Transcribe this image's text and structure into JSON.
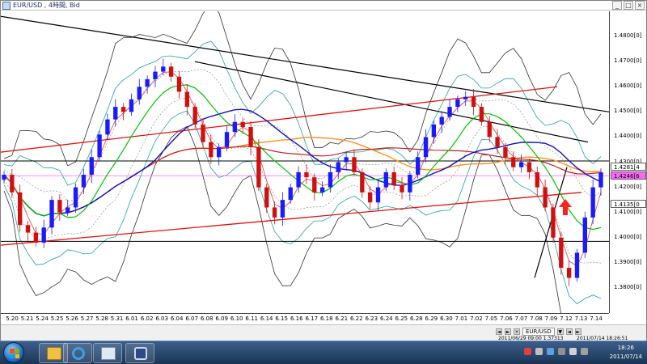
{
  "window": {
    "title": "EUR/USD , 4時間, Bid"
  },
  "window_buttons": {
    "minimize": "_",
    "maximize": "□",
    "close": "×"
  },
  "chart_data": {
    "type": "candlestick",
    "symbol": "EUR/USD",
    "timeframe": "4時間",
    "ylim": [
      1.37,
      1.49
    ],
    "y_ticks": [
      {
        "value": 1.38,
        "label": "1.3800[0]"
      },
      {
        "value": 1.39,
        "label": "1.3900[0]"
      },
      {
        "value": 1.4,
        "label": "1.4000[0]"
      },
      {
        "value": 1.41,
        "label": "1.4100[0]"
      },
      {
        "value": 1.42,
        "label": "1.4200[0]"
      },
      {
        "value": 1.43,
        "label": "1.4300[0]"
      },
      {
        "value": 1.44,
        "label": "1.4400[0]"
      },
      {
        "value": 1.45,
        "label": "1.4500[0]"
      },
      {
        "value": 1.46,
        "label": "1.4600[0]"
      },
      {
        "value": 1.47,
        "label": "1.4700[0]"
      },
      {
        "value": 1.48,
        "label": "1.4800[0]"
      }
    ],
    "x_labels": [
      "5.20",
      "5.21",
      "5.24",
      "5.25",
      "5.26",
      "5.27",
      "5.28",
      "5.31",
      "6.01",
      "6.02",
      "6.03",
      "6.04",
      "6.07",
      "6.08",
      "6.09",
      "6.10",
      "6.11",
      "6.14",
      "6.15",
      "6.16",
      "6.17",
      "6.18",
      "6.21",
      "6.22",
      "6.23",
      "6.24",
      "6.25",
      "6.28",
      "6.29",
      "6.30",
      "7.01",
      "7.02",
      "7.05",
      "7.06",
      "7.07",
      "7.08",
      "7.09",
      "7.12",
      "7.13",
      "7.14"
    ],
    "price_tags": [
      {
        "value": 1.4281,
        "label": "1.4281[4",
        "color": "#ffffff"
      },
      {
        "value": 1.4246,
        "label": "1.4246[6",
        "color": "#ff66ff"
      },
      {
        "value": 1.4135,
        "label": "1.4135[0",
        "color": "#ffffff"
      }
    ],
    "horizontal_levels": [
      1.4305,
      1.3985
    ],
    "magenta_level": 1.4246,
    "close_path": [
      1.425,
      1.418,
      1.405,
      1.402,
      1.398,
      1.404,
      1.415,
      1.41,
      1.412,
      1.42,
      1.425,
      1.432,
      1.441,
      1.447,
      1.452,
      1.45,
      1.455,
      1.46,
      1.463,
      1.466,
      1.468,
      1.464,
      1.458,
      1.452,
      1.445,
      1.438,
      1.432,
      1.436,
      1.442,
      1.446,
      1.444,
      1.436,
      1.42,
      1.412,
      1.408,
      1.415,
      1.42,
      1.426,
      1.424,
      1.418,
      1.42,
      1.426,
      1.43,
      1.432,
      1.426,
      1.418,
      1.414,
      1.42,
      1.426,
      1.421,
      1.418,
      1.425,
      1.432,
      1.44,
      1.445,
      1.448,
      1.452,
      1.455,
      1.456,
      1.452,
      1.446,
      1.44,
      1.436,
      1.432,
      1.428,
      1.43,
      1.426,
      1.42,
      1.412,
      1.4,
      1.388,
      1.384,
      1.394,
      1.408,
      1.42,
      1.426
    ],
    "colors": {
      "bull": "#1a1aff",
      "bear": "#d01010",
      "trend": "#000000",
      "channel": "#e01010",
      "ma_fast": "#00c000",
      "ma_mid": "#1010c0",
      "ma_slow": "#ff9020",
      "band": "#20a0a0",
      "outer_band": "#303030"
    }
  },
  "status": {
    "left_info": "2011/06/29 09:00  1.37313",
    "right_info": "2011/07/14 18:26:51"
  },
  "taskbar": {
    "clock_time": "18:26",
    "clock_date": "2011/07/14"
  },
  "icons": {
    "start": "windows-start-icon",
    "explorer": "folder-icon",
    "browser": "internet-explorer-icon",
    "app": "window-app-icon",
    "trading": "trading-app-icon"
  }
}
